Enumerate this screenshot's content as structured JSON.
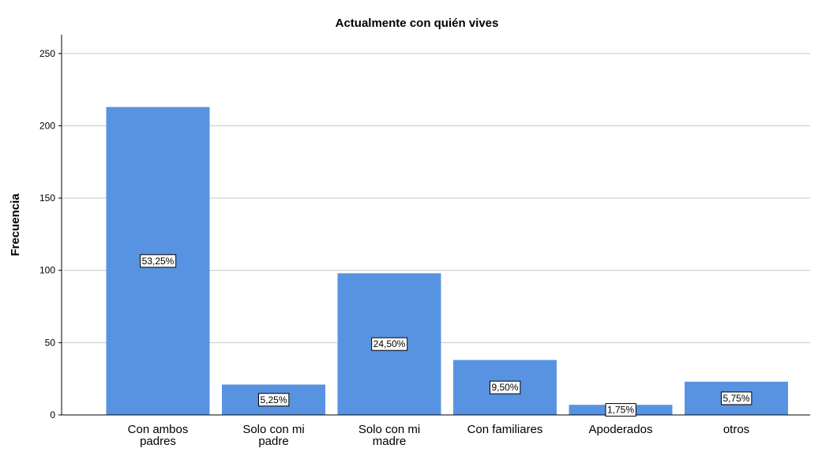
{
  "chart_data": {
    "type": "bar",
    "title": "Actualmente con quién vives",
    "y_label": "Frecuencia",
    "categories": [
      [
        "Con ambos",
        "padres"
      ],
      [
        "Solo con mi",
        "padre"
      ],
      [
        "Solo con mi",
        "madre"
      ],
      [
        "Con familiares"
      ],
      [
        "Apoderados"
      ],
      [
        "otros"
      ]
    ],
    "values": [
      213,
      21,
      98,
      38,
      7,
      23
    ],
    "data_labels": [
      "53,25%",
      "5,25%",
      "24,50%",
      "9,50%",
      "1,75%",
      "5,75%"
    ],
    "color": "#5893e2",
    "ylim": [
      0,
      263
    ],
    "yticks": [
      0,
      50,
      100,
      150,
      200,
      250
    ],
    "grid": true
  }
}
